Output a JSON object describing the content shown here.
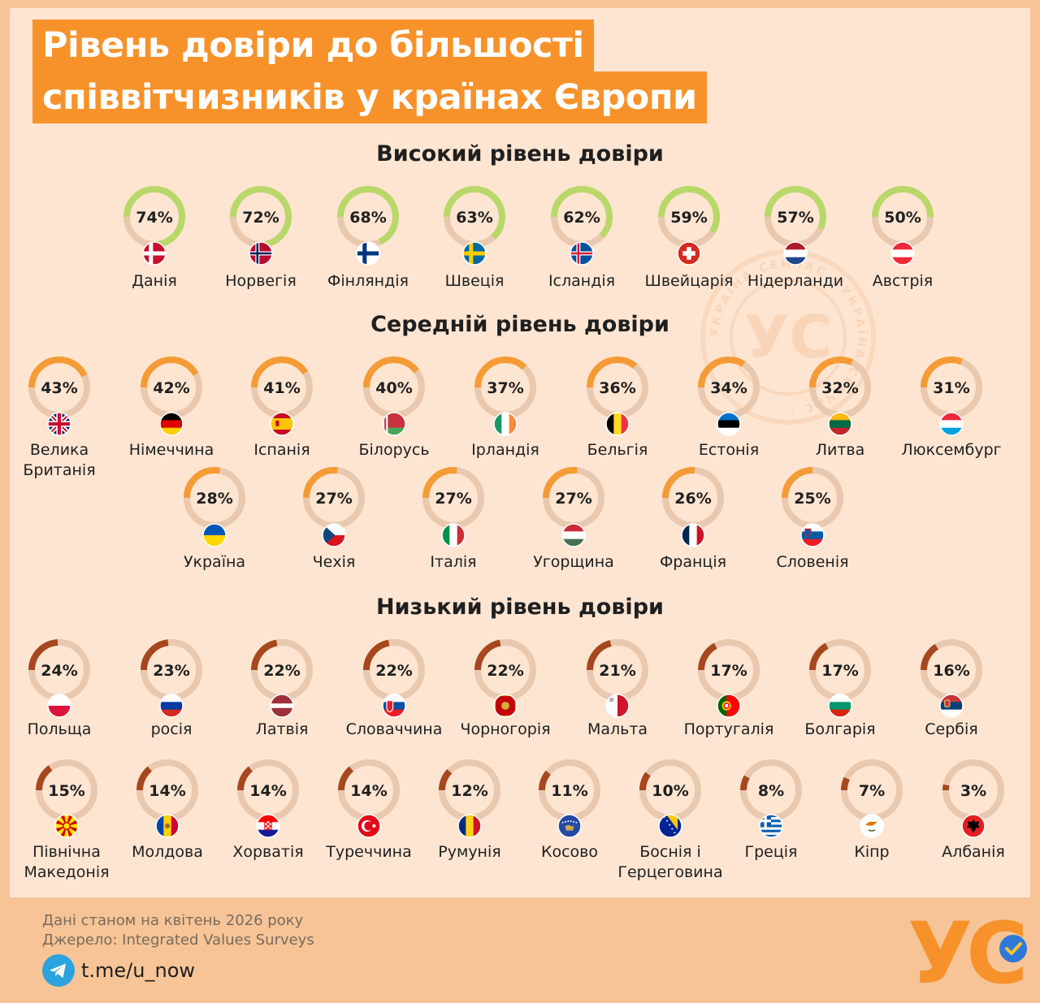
{
  "title": {
    "line1": "Рівень довіри до більшості",
    "line2": "співвітчизників у країнах Європи"
  },
  "sections": {
    "high": "Високий рівень довіри",
    "medium": "Середній рівень довіри",
    "low": "Низький рівень довіри"
  },
  "colors": {
    "high": "#b9d86a",
    "medium": "#f59b35",
    "low": "#a6471e",
    "track": "#e9c8b0",
    "title_bg": "#f7922b",
    "card_bg": "#fde5d2",
    "page_bg": "#f6c496"
  },
  "chart_data": {
    "type": "donut-grid",
    "unit": "%",
    "groups": [
      {
        "name": "Високий рівень довіри",
        "items": [
          {
            "country": "Данія",
            "value": 74,
            "flag": "denmark-flag"
          },
          {
            "country": "Норвегія",
            "value": 72,
            "flag": "norway-flag"
          },
          {
            "country": "Фінляндія",
            "value": 68,
            "flag": "finland-flag"
          },
          {
            "country": "Швеція",
            "value": 63,
            "flag": "sweden-flag"
          },
          {
            "country": "Ісландія",
            "value": 62,
            "flag": "iceland-flag"
          },
          {
            "country": "Швейцарія",
            "value": 59,
            "flag": "switzerland-flag"
          },
          {
            "country": "Нідерланди",
            "value": 57,
            "flag": "netherlands-flag"
          },
          {
            "country": "Австрія",
            "value": 50,
            "flag": "austria-flag"
          }
        ]
      },
      {
        "name": "Середній рівень довіри",
        "items": [
          {
            "country": "Велика|Британія",
            "value": 43,
            "flag": "uk-flag"
          },
          {
            "country": "Німеччина",
            "value": 42,
            "flag": "germany-flag"
          },
          {
            "country": "Іспанія",
            "value": 41,
            "flag": "spain-flag"
          },
          {
            "country": "Білорусь",
            "value": 40,
            "flag": "belarus-flag"
          },
          {
            "country": "Ірландія",
            "value": 37,
            "flag": "ireland-flag"
          },
          {
            "country": "Бельгія",
            "value": 36,
            "flag": "belgium-flag"
          },
          {
            "country": "Естонія",
            "value": 34,
            "flag": "estonia-flag"
          },
          {
            "country": "Литва",
            "value": 32,
            "flag": "lithuania-flag"
          },
          {
            "country": "Люксембург",
            "value": 31,
            "flag": "luxembourg-flag"
          },
          {
            "country": "Україна",
            "value": 28,
            "flag": "ukraine-flag"
          },
          {
            "country": "Чехія",
            "value": 27,
            "flag": "czechia-flag"
          },
          {
            "country": "Італія",
            "value": 27,
            "flag": "italy-flag"
          },
          {
            "country": "Угорщина",
            "value": 27,
            "flag": "hungary-flag"
          },
          {
            "country": "Франція",
            "value": 26,
            "flag": "france-flag"
          },
          {
            "country": "Словенія",
            "value": 25,
            "flag": "slovenia-flag"
          }
        ]
      },
      {
        "name": "Низький рівень довіри",
        "items": [
          {
            "country": "Польща",
            "value": 24,
            "flag": "poland-flag"
          },
          {
            "country": "росія",
            "value": 23,
            "flag": "russia-flag"
          },
          {
            "country": "Латвія",
            "value": 22,
            "flag": "latvia-flag"
          },
          {
            "country": "Словаччина",
            "value": 22,
            "flag": "slovakia-flag"
          },
          {
            "country": "Чорногорія",
            "value": 22,
            "flag": "montenegro-flag"
          },
          {
            "country": "Мальта",
            "value": 21,
            "flag": "malta-flag"
          },
          {
            "country": "Португалія",
            "value": 17,
            "flag": "portugal-flag"
          },
          {
            "country": "Болгарія",
            "value": 17,
            "flag": "bulgaria-flag"
          },
          {
            "country": "Сербія",
            "value": 16,
            "flag": "serbia-flag"
          },
          {
            "country": "Північна|Македонія",
            "value": 15,
            "flag": "north-macedonia-flag"
          },
          {
            "country": "Молдова",
            "value": 14,
            "flag": "moldova-flag"
          },
          {
            "country": "Хорватія",
            "value": 14,
            "flag": "croatia-flag"
          },
          {
            "country": "Туреччина",
            "value": 14,
            "flag": "turkey-flag"
          },
          {
            "country": "Румунія",
            "value": 12,
            "flag": "romania-flag"
          },
          {
            "country": "Косово",
            "value": 11,
            "flag": "kosovo-flag"
          },
          {
            "country": "Боснія і|Герцеговина",
            "value": 10,
            "flag": "bosnia-flag"
          },
          {
            "country": "Греція",
            "value": 8,
            "flag": "greece-flag"
          },
          {
            "country": "Кіпр",
            "value": 7,
            "flag": "cyprus-flag"
          },
          {
            "country": "Албанія",
            "value": 3,
            "flag": "albania-flag"
          }
        ]
      }
    ]
  },
  "footer": {
    "date_note": "Дані станом на квітень 2026 року",
    "source": "Джерело: Integrated Values Surveys",
    "link": "t.me/u_now",
    "link_icon": "telegram-icon"
  },
  "brand": {
    "logo": "УС",
    "watermark_ring_text": "УКРАЇНА СЕЙЧАС · УКРАЇНА СЕЙЧАС ·"
  }
}
